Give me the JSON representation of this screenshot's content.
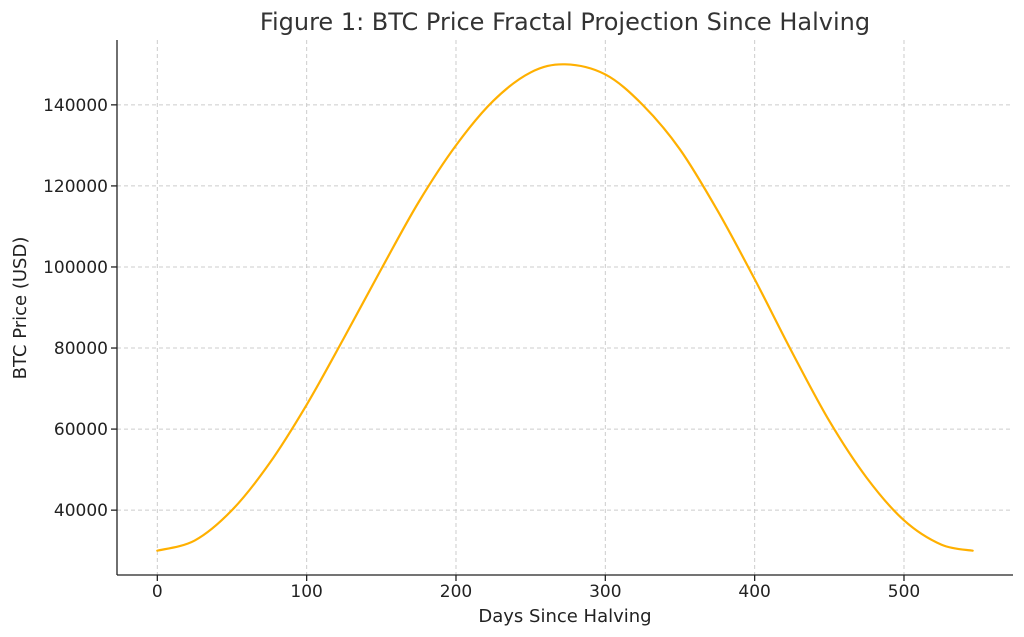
{
  "chart_data": {
    "type": "line",
    "title": "Figure 1: BTC Price Fractal Projection Since Halving",
    "xlabel": "Days Since Halving",
    "ylabel": "BTC Price (USD)",
    "xlim": [
      -27,
      573
    ],
    "ylim": [
      24000,
      156000
    ],
    "xticks": [
      0,
      100,
      200,
      300,
      400,
      500
    ],
    "yticks": [
      40000,
      60000,
      80000,
      100000,
      120000,
      140000
    ],
    "grid": true,
    "series": [
      {
        "color": "#ffb000",
        "x": [
          0,
          25,
          50,
          75,
          100,
          125,
          150,
          175,
          200,
          225,
          250,
          273,
          300,
          325,
          350,
          375,
          400,
          425,
          450,
          475,
          500,
          525,
          546
        ],
        "y": [
          30000,
          32500,
          40000,
          51500,
          66000,
          82500,
          99500,
          116000,
          130000,
          141000,
          148000,
          150000,
          147500,
          140000,
          129000,
          114000,
          97000,
          79000,
          62000,
          48000,
          37500,
          31500,
          30000
        ]
      }
    ]
  }
}
